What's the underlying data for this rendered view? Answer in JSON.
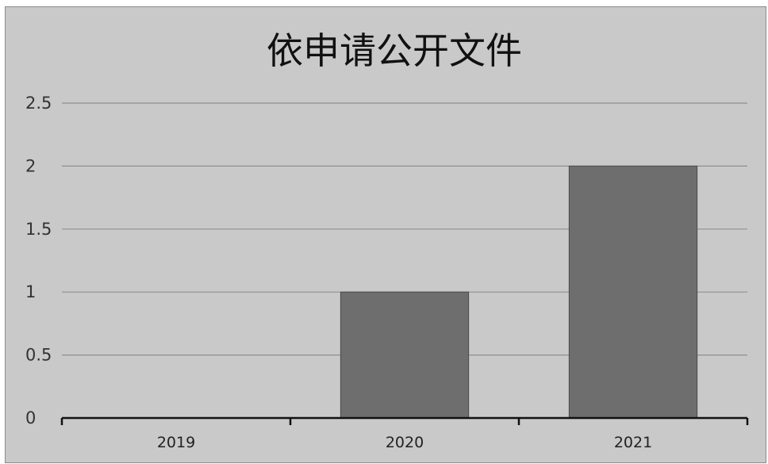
{
  "chart_data": {
    "type": "bar",
    "title": "依申请公开文件",
    "categories": [
      "2019",
      "2020",
      "2021"
    ],
    "values": [
      0,
      1,
      2
    ],
    "ylim": [
      0,
      2.5
    ],
    "yticks": [
      "0",
      "0.5",
      "1",
      "1.5",
      "2",
      "2.5"
    ],
    "grid": true,
    "legend": "none",
    "colors": {
      "bar": "#6e6e6e",
      "background": "#c9c9c9",
      "grid": "#8f8f8f",
      "axis": "#111111"
    }
  }
}
